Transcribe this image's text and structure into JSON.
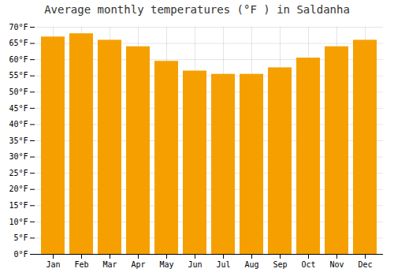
{
  "chart_data": {
    "type": "bar",
    "title": "Average monthly temperatures (°F ) in Saldanha",
    "categories": [
      "Jan",
      "Feb",
      "Mar",
      "Apr",
      "May",
      "Jun",
      "Jul",
      "Aug",
      "Sep",
      "Oct",
      "Nov",
      "Dec"
    ],
    "values": [
      67,
      68,
      66,
      64,
      59.5,
      56.5,
      55.5,
      55.5,
      57.5,
      60.5,
      64,
      66
    ],
    "color": "#F5A000",
    "ylim": [
      0,
      70
    ],
    "yticks": [
      {
        "value": 0,
        "label": "0°F"
      },
      {
        "value": 5,
        "label": "5°F"
      },
      {
        "value": 10,
        "label": "10°F"
      },
      {
        "value": 15,
        "label": "15°F"
      },
      {
        "value": 20,
        "label": "20°F"
      },
      {
        "value": 25,
        "label": "25°F"
      },
      {
        "value": 30,
        "label": "30°F"
      },
      {
        "value": 35,
        "label": "35°F"
      },
      {
        "value": 40,
        "label": "40°F"
      },
      {
        "value": 45,
        "label": "45°F"
      },
      {
        "value": 50,
        "label": "50°F"
      },
      {
        "value": 55,
        "label": "55°F"
      },
      {
        "value": 60,
        "label": "60°F"
      },
      {
        "value": 65,
        "label": "65°F"
      },
      {
        "value": 70,
        "label": "70°F"
      }
    ],
    "grid": true
  }
}
